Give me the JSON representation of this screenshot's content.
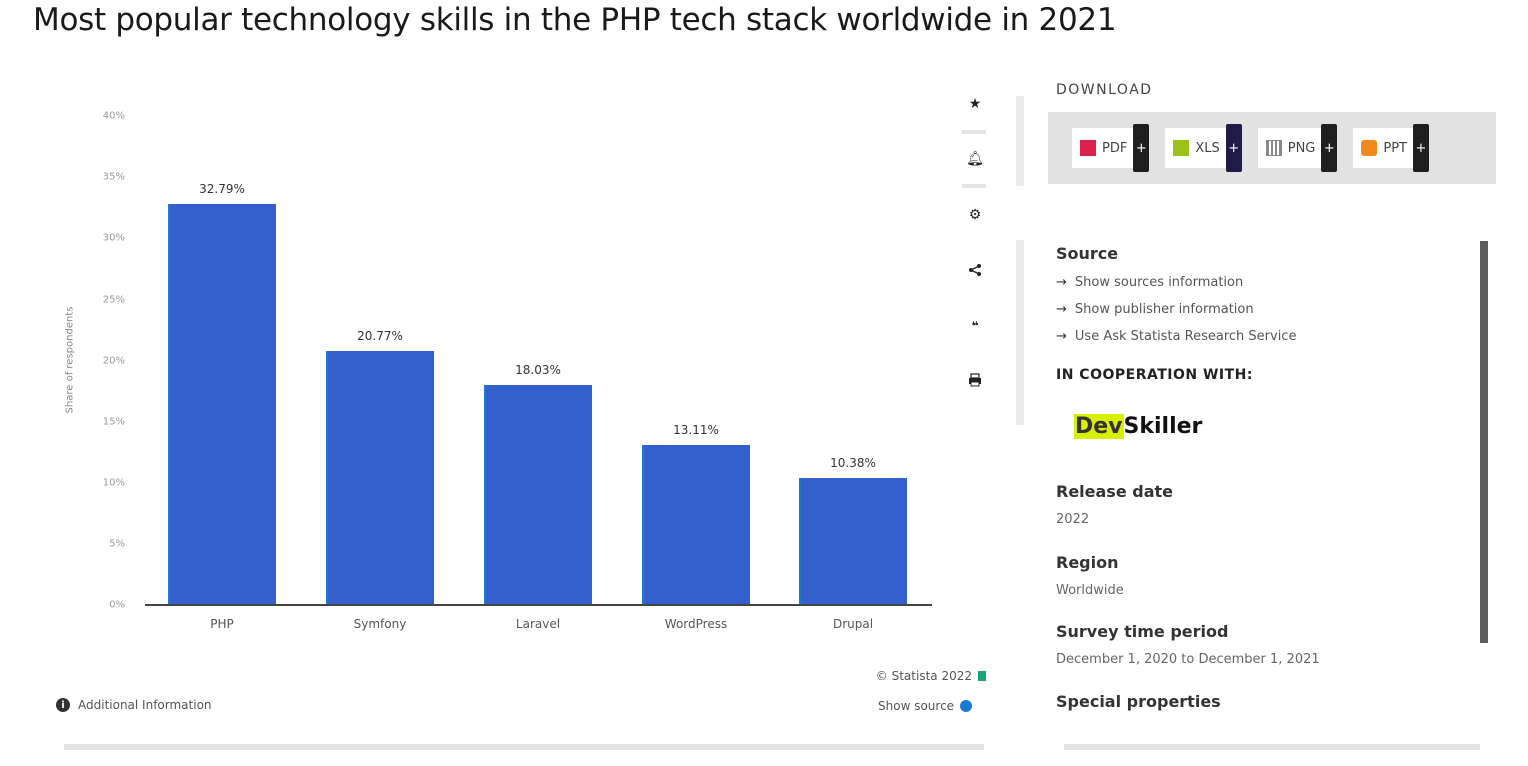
{
  "title": "Most popular technology skills in the PHP tech stack worldwide in 2021",
  "chart_data": {
    "type": "bar",
    "title": "Most popular technology skills in the PHP tech stack worldwide in 2021",
    "categories": [
      "PHP",
      "Symfony",
      "Laravel",
      "WordPress",
      "Drupal"
    ],
    "values": [
      32.79,
      20.77,
      18.03,
      13.11,
      10.38
    ],
    "value_labels": [
      "32.79%",
      "20.77%",
      "18.03%",
      "13.11%",
      "10.38%"
    ],
    "xlabel": "",
    "ylabel": "Share of respondents",
    "ylim": [
      0,
      40
    ],
    "yticks": [
      "0%",
      "5%",
      "10%",
      "15%",
      "20%",
      "25%",
      "30%",
      "35%",
      "40%"
    ],
    "bar_color": "#3360cc",
    "grid": false,
    "legend": null
  },
  "chart_footer": {
    "credit": "© Statista 2022",
    "show_source": "Show source",
    "additional_info": "Additional Information"
  },
  "toolbar": {
    "icons": [
      "star-icon",
      "bell-icon",
      "gear-icon",
      "share-icon",
      "quote-icon",
      "print-icon"
    ]
  },
  "download": {
    "title": "DOWNLOAD",
    "buttons": [
      {
        "label": "PDF",
        "color": "#e0204a"
      },
      {
        "label": "XLS",
        "color": "#9cc21a"
      },
      {
        "label": "PNG",
        "color": "#888888"
      },
      {
        "label": "PPT",
        "color": "#f08a1e"
      }
    ],
    "plus": "+"
  },
  "source": {
    "heading": "Source",
    "links": [
      "Show sources information",
      "Show publisher information",
      "Use Ask Statista Research Service"
    ],
    "cooperation_heading": "IN COOPERATION WITH:",
    "partner_logo": {
      "prefix": "Dev",
      "suffix": "Skiller"
    }
  },
  "details": [
    {
      "label": "Release date",
      "value": "2022"
    },
    {
      "label": "Region",
      "value": "Worldwide"
    },
    {
      "label": "Survey time period",
      "value": "December 1, 2020 to December 1, 2021"
    },
    {
      "label": "Special properties",
      "value": ""
    }
  ]
}
